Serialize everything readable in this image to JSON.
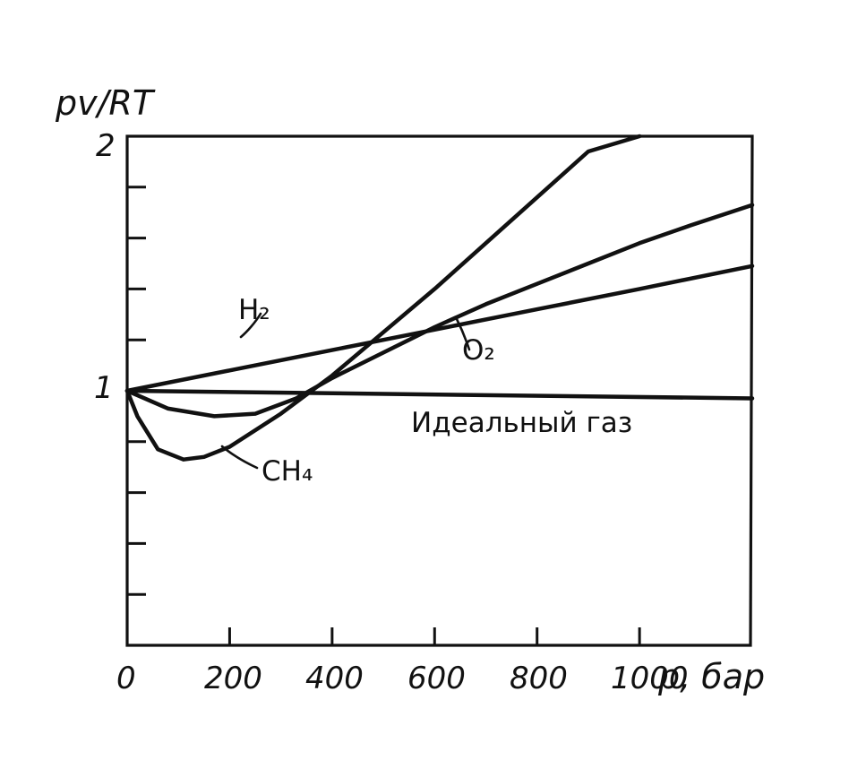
{
  "chart_data": {
    "type": "line",
    "title": "",
    "ylabel": "pv/RT",
    "xlabel": "p, бар",
    "xlim": [
      0,
      1220
    ],
    "ylim": [
      0,
      2
    ],
    "x_tick_labels": [
      "0",
      "200",
      "400",
      "600",
      "800",
      "1000"
    ],
    "y_tick_labels": [
      "1",
      "2"
    ],
    "grid": false,
    "series": [
      {
        "name": "H₂",
        "x": [
          0,
          200,
          400,
          600,
          800,
          1000,
          1220
        ],
        "y": [
          1.0,
          1.08,
          1.16,
          1.24,
          1.32,
          1.4,
          1.49
        ]
      },
      {
        "name": "O₂",
        "x": [
          0,
          80,
          170,
          250,
          330,
          400,
          500,
          600,
          700,
          800,
          900,
          1000,
          1100,
          1220
        ],
        "y": [
          1.0,
          0.93,
          0.9,
          0.91,
          0.97,
          1.05,
          1.15,
          1.25,
          1.34,
          1.42,
          1.5,
          1.58,
          1.65,
          1.73
        ]
      },
      {
        "name": "CH₄",
        "x": [
          0,
          20,
          60,
          110,
          150,
          200,
          300,
          400,
          500,
          600,
          700,
          800,
          900,
          1000
        ],
        "y": [
          1.0,
          0.9,
          0.77,
          0.73,
          0.74,
          0.78,
          0.91,
          1.06,
          1.23,
          1.4,
          1.58,
          1.76,
          1.94,
          2.0
        ]
      },
      {
        "name": "Идеальный газ",
        "x": [
          0,
          1220
        ],
        "y": [
          1.0,
          0.97
        ]
      }
    ]
  }
}
